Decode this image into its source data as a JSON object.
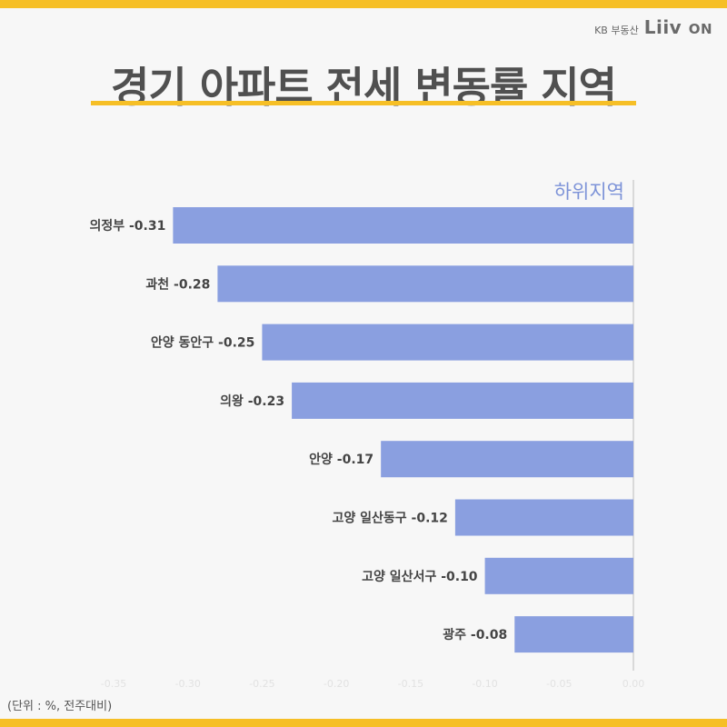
{
  "brand": {
    "sub": "KB 부동산",
    "logo_main": "Liiv",
    "logo_on": "ON"
  },
  "title": "경기 아파트 전세 변동률 지역",
  "unit_note": "(단위 : %, 전주대비)",
  "colors": {
    "bar": "#8a9fe0",
    "accent": "#f6bf26",
    "header_label": "#7d93d8",
    "text": "#444444"
  },
  "chart_data": {
    "type": "bar",
    "orientation": "horizontal",
    "series_label": "하위지역",
    "categories": [
      "의정부 -0.31",
      "과천 -0.28",
      "안양 동안구 -0.25",
      "의왕 -0.23",
      "안양 -0.17",
      "고양 일산동구 -0.12",
      "고양 일산서구 -0.10",
      "광주 -0.08"
    ],
    "values": [
      -0.31,
      -0.28,
      -0.25,
      -0.23,
      -0.17,
      -0.12,
      -0.1,
      -0.08
    ],
    "xlim": [
      -0.35,
      0.0
    ],
    "xticks": [
      "-0.35",
      "-0.30",
      "-0.25",
      "-0.20",
      "-0.15",
      "-0.10",
      "-0.05",
      "0.00"
    ],
    "tick_values": [
      -0.35,
      -0.3,
      -0.25,
      -0.2,
      -0.15,
      -0.1,
      -0.05,
      0.0
    ],
    "grid": false
  }
}
